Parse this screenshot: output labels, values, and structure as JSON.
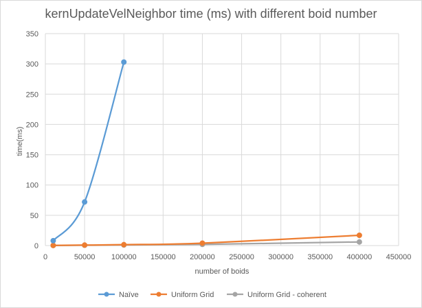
{
  "chart_data": {
    "type": "line",
    "title": "kernUpdateVelNeighbor time (ms) with different boid number",
    "xlabel": "number of boids",
    "ylabel": "time(ms)",
    "xlim": [
      0,
      450000
    ],
    "ylim": [
      0,
      350
    ],
    "xticks": [
      0,
      50000,
      100000,
      150000,
      200000,
      250000,
      300000,
      350000,
      400000,
      450000
    ],
    "yticks": [
      0,
      50,
      100,
      150,
      200,
      250,
      300,
      350
    ],
    "grid": true,
    "legend_position": "bottom",
    "series": [
      {
        "name": "Naïve",
        "color": "#5b9bd5",
        "x": [
          10000,
          50000,
          100000
        ],
        "y": [
          8,
          72,
          303
        ]
      },
      {
        "name": "Uniform Grid",
        "color": "#ed7d31",
        "x": [
          10000,
          50000,
          100000,
          200000,
          400000
        ],
        "y": [
          0.3,
          0.8,
          1.5,
          4,
          17
        ]
      },
      {
        "name": "Uniform Grid - coherent",
        "color": "#a5a5a5",
        "x": [
          10000,
          50000,
          100000,
          200000,
          400000
        ],
        "y": [
          0.2,
          0.5,
          1,
          2,
          6
        ]
      }
    ]
  }
}
